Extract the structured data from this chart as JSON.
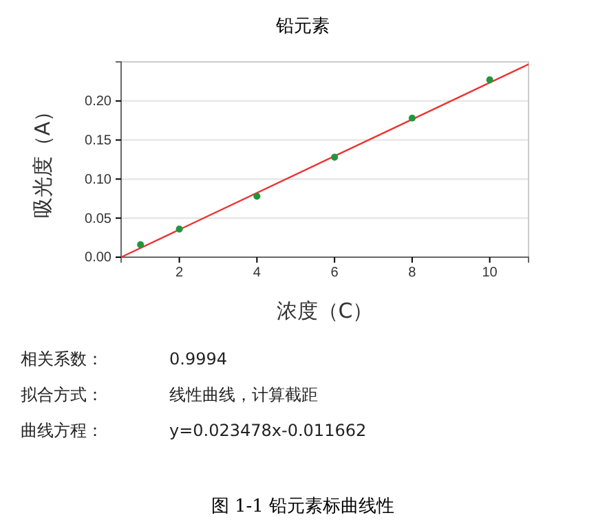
{
  "chart_data": {
    "type": "scatter",
    "title": "铅元素",
    "xlabel": "浓度（C）",
    "ylabel": "吸光度（A）",
    "xlim": [
      0.5,
      11
    ],
    "xticks": [
      2,
      4,
      6,
      8,
      10
    ],
    "ylim": [
      0,
      0.25
    ],
    "yticks": [
      {
        "value": 0,
        "label": "0.00"
      },
      {
        "value": 0.05,
        "label": "0.05"
      },
      {
        "value": 0.1,
        "label": "0.10"
      },
      {
        "value": 0.15,
        "label": "0.15"
      },
      {
        "value": 0.2,
        "label": "0.20"
      }
    ],
    "grid": "y",
    "series": [
      {
        "type": "line",
        "color": "#ee3333",
        "x": [
          0.5,
          11
        ],
        "values": [
          0,
          0.247
        ]
      },
      {
        "color": "#22963c",
        "marker": "circle",
        "x": [
          1,
          2,
          4,
          6,
          8,
          10
        ],
        "values": [
          0.016,
          0.036,
          0.078,
          0.128,
          0.178,
          0.227
        ]
      }
    ],
    "annotations": [
      "相关系数：",
      "0.9994",
      "拟合方式：",
      "线性曲线，计算截距",
      "曲线方程：",
      "y=0.023478x-0.011662",
      "图 1-1  铅元素标曲线性"
    ]
  }
}
